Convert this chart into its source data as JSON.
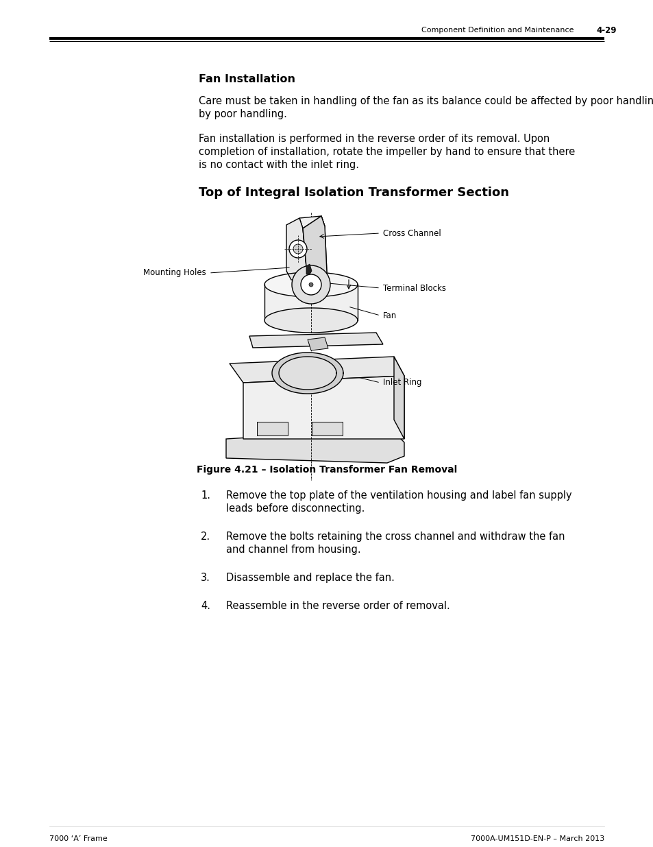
{
  "page_header_right_text": "Component Definition and Maintenance",
  "page_header_right_num": "4-29",
  "section1_title": "Fan Installation",
  "section1_para1": "Care must be taken in handling of the fan as its balance could be affected by poor handling.",
  "section1_para2": "Fan installation is performed in the reverse order of its removal. Upon completion of installation, rotate the impeller by hand to ensure that there is no contact with the inlet ring.",
  "section2_title": "Top of Integral Isolation Transformer Section",
  "figure_caption": "Figure 4.21 – Isolation Transformer Fan Removal",
  "labels": {
    "cross_channel": "Cross Channel",
    "mounting_holes": "Mounting Holes",
    "terminal_blocks": "Terminal Blocks",
    "fan": "Fan",
    "inlet_ring": "Inlet Ring"
  },
  "numbered_items": [
    [
      "Remove the top plate of the ventilation housing and label fan supply",
      "leads before disconnecting."
    ],
    [
      "Remove the bolts retaining the cross channel and withdraw the fan",
      "and channel from housing."
    ],
    [
      "Disassemble and replace the fan."
    ],
    [
      "Reassemble in the reverse order of removal."
    ]
  ],
  "footer_left": "7000 ‘A’ Frame",
  "footer_right": "7000A-UM151D-EN-P – March 2013",
  "bg_color": "#ffffff",
  "text_color": "#000000"
}
